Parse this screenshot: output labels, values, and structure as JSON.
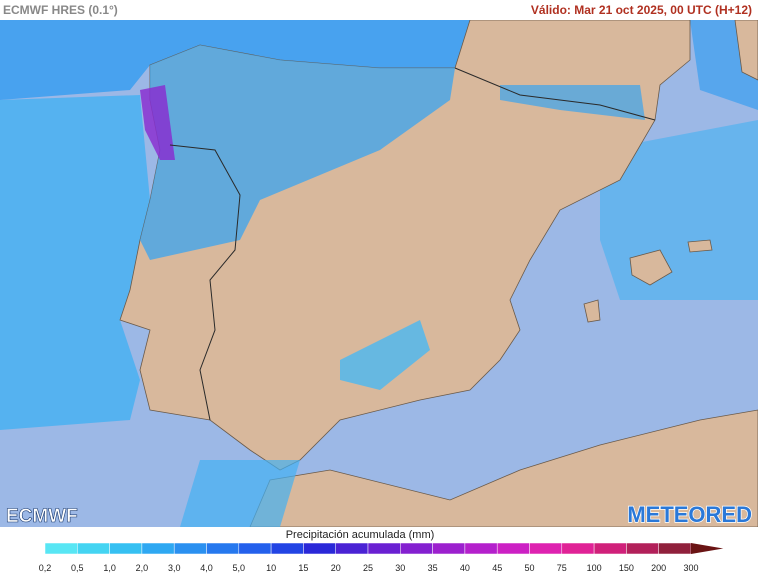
{
  "header": {
    "model": "ECMWF HRES (0.1°)",
    "valid": "Válido: Mar 21 oct 2025, 00 UTC (H+12)"
  },
  "logos": {
    "left": "ECMWF",
    "right": "METEORED"
  },
  "legend": {
    "title": "Precipitación acumulada (mm)",
    "labels": [
      "0,2",
      "0,5",
      "1,0",
      "2,0",
      "3,0",
      "4,0",
      "5,0",
      "10",
      "15",
      "20",
      "25",
      "30",
      "35",
      "40",
      "45",
      "50",
      "75",
      "100",
      "150",
      "200",
      "300"
    ],
    "colors": [
      "#58e6f4",
      "#44d4f2",
      "#36c0f2",
      "#2ea8f2",
      "#2a90f0",
      "#2678ee",
      "#2460ec",
      "#2244e4",
      "#2a28d8",
      "#4a22d4",
      "#6a20d2",
      "#8420d0",
      "#9c20ce",
      "#b420cc",
      "#cc20c4",
      "#de22b0",
      "#e02296",
      "#d0207a",
      "#b2205a",
      "#90203c",
      "#6a1414"
    ]
  }
}
